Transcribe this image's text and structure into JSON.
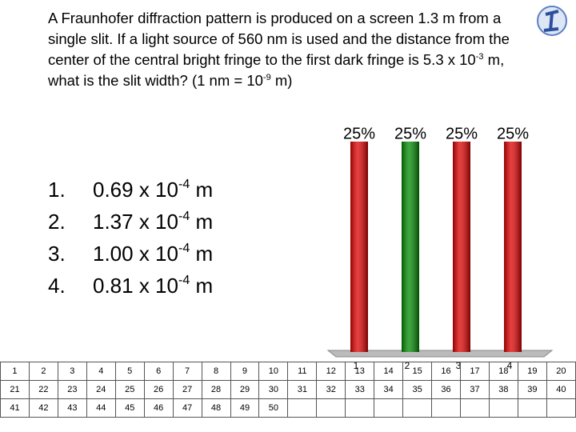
{
  "question": [
    "A Fraunhofer diffraction pattern is produced on a screen 1.3 m from a single slit. If a light source of 560 nm is used and the distance from the center of the central bright fringe to the first dark fringe is 5.3 x 10",
    "-3",
    " m, what is the slit width? (1 nm = 10",
    "-9",
    " m)"
  ],
  "answers": [
    {
      "number": "1.",
      "text": "0.69 x 10",
      "exponent": "-4",
      "unit": " m"
    },
    {
      "number": "2.",
      "text": "1.37 x 10",
      "exponent": "-4",
      "unit": " m"
    },
    {
      "number": "3.",
      "text": "1.00 x 10",
      "exponent": "-4",
      "unit": " m"
    },
    {
      "number": "4.",
      "text": "0.81 x 10",
      "exponent": "-4",
      "unit": " m"
    }
  ],
  "chart_data": {
    "type": "bar",
    "categories": [
      "1",
      "2",
      "3",
      "4"
    ],
    "values": [
      25,
      25,
      25,
      25
    ],
    "value_labels": [
      "25%",
      "25%",
      "25%",
      "25%"
    ],
    "colors": [
      "#e00000",
      "#008a00",
      "#e00000",
      "#e00000"
    ],
    "ylim": [
      0,
      25
    ]
  },
  "response_grid": [
    1,
    2,
    3,
    4,
    5,
    6,
    7,
    8,
    9,
    10,
    11,
    12,
    13,
    14,
    15,
    16,
    17,
    18,
    19,
    20,
    21,
    22,
    23,
    24,
    25,
    26,
    27,
    28,
    29,
    30,
    31,
    32,
    33,
    34,
    35,
    36,
    37,
    38,
    39,
    40,
    41,
    42,
    43,
    44,
    45,
    46,
    47,
    48,
    49,
    50
  ]
}
